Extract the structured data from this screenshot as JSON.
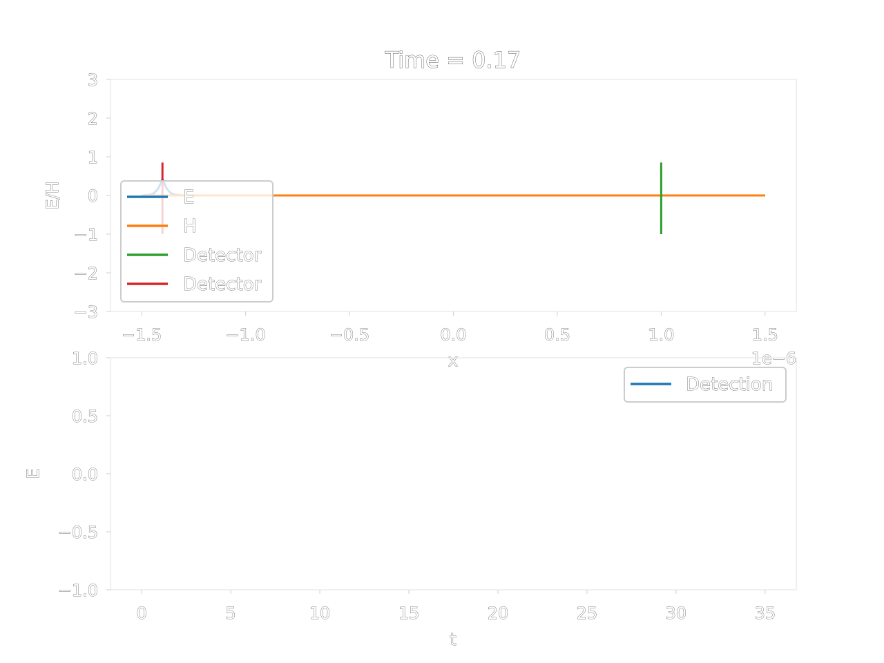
{
  "chart_data": [
    {
      "type": "line",
      "title": "Time = 0.17",
      "xlabel": "x",
      "ylabel": "E/H",
      "xlim": [
        -1.65,
        1.65
      ],
      "ylim": [
        -3,
        3
      ],
      "x_ticks": [
        -1.5,
        -1.0,
        -0.5,
        0.0,
        0.5,
        1.0,
        1.5
      ],
      "x_tick_labels": [
        "−1.5",
        "−1.0",
        "−0.5",
        "0.0",
        "0.5",
        "1.0",
        "1.5"
      ],
      "y_ticks": [
        3,
        2,
        1,
        0,
        -1,
        -2,
        -3
      ],
      "y_tick_labels": [
        "3",
        "2",
        "1",
        "0",
        "−1",
        "−2",
        "−3"
      ],
      "offset_text": "1e−6",
      "legend_location": "center-left",
      "series": [
        {
          "name": "E",
          "color": "#1f77b4",
          "x": [
            -1.5,
            -1.46,
            -1.44,
            -1.42,
            -1.41,
            -1.4,
            -1.39,
            -1.38,
            -1.36,
            -1.34,
            -1.3,
            1.5
          ],
          "y": [
            0,
            0.02,
            0.06,
            0.18,
            0.3,
            0.42,
            0.3,
            0.18,
            0.06,
            0.02,
            0,
            0
          ]
        },
        {
          "name": "H",
          "color": "#ff7f0e",
          "x": [
            -1.5,
            1.5
          ],
          "y": [
            0,
            0
          ]
        },
        {
          "name": "Detector",
          "color": "#2ca02c",
          "x": [
            1.0,
            1.0
          ],
          "y": [
            -1,
            0.85
          ]
        },
        {
          "name": "Detector",
          "color": "#d62728",
          "x": [
            -1.4,
            -1.4
          ],
          "y": [
            -1,
            0.85
          ]
        }
      ]
    },
    {
      "type": "line",
      "title": "",
      "xlabel": "t",
      "ylabel": "E",
      "xlim": [
        -1.75,
        36.75
      ],
      "ylim": [
        -1.0,
        1.0
      ],
      "x_ticks": [
        0,
        5,
        10,
        15,
        20,
        25,
        30,
        35
      ],
      "x_tick_labels": [
        "0",
        "5",
        "10",
        "15",
        "20",
        "25",
        "30",
        "35"
      ],
      "y_ticks": [
        1.0,
        0.5,
        0.0,
        -0.5,
        -1.0
      ],
      "y_tick_labels": [
        "1.0",
        "0.5",
        "0.0",
        "−0.5",
        "−1.0"
      ],
      "legend_location": "upper-right",
      "series": [
        {
          "name": "Detection",
          "color": "#1f77b4",
          "x": [],
          "y": []
        }
      ]
    }
  ]
}
